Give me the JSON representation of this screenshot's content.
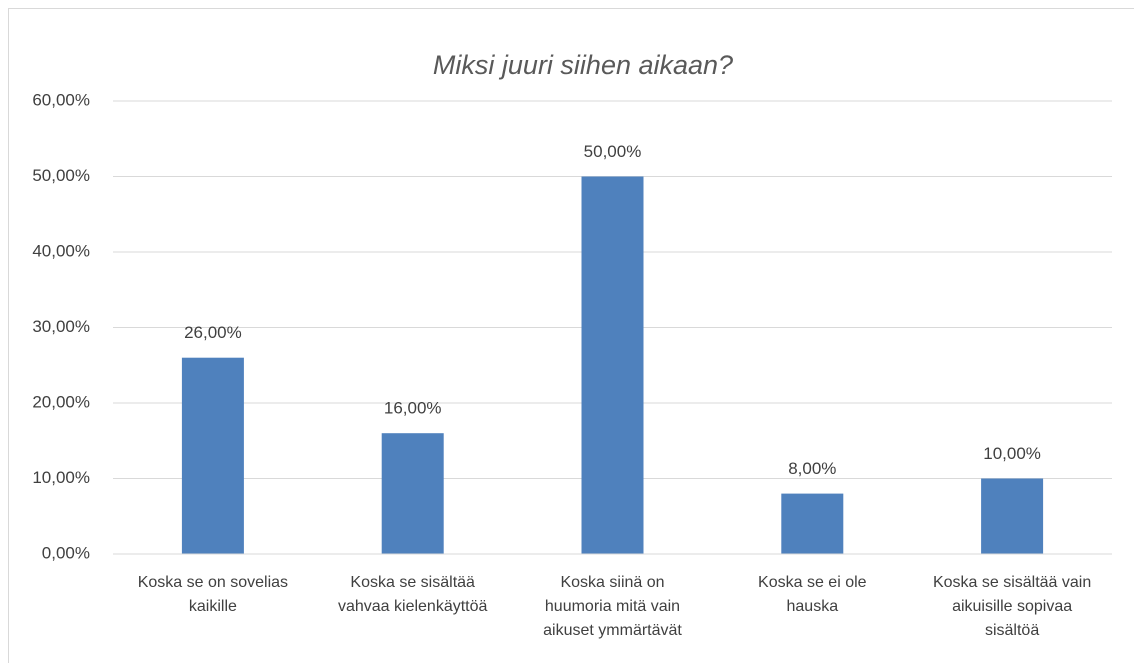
{
  "chart_data": {
    "type": "bar",
    "title": "Miksi juuri siihen aikaan?",
    "categories": [
      "Koska se on sovelias\nkaikille",
      "Koska se sisältää\nvahvaa kielenkäyttöä",
      "Koska siinä on\nhuumoria mitä vain\naikuset ymmärtävät",
      "Koska se ei ole\nhauska",
      "Koska se sisältää vain\naikuisille sopivaa\nsisältöä"
    ],
    "values": [
      26,
      16,
      50,
      8,
      10
    ],
    "value_labels": [
      "26,00%",
      "16,00%",
      "50,00%",
      "8,00%",
      "10,00%"
    ],
    "color": "#4f81bd",
    "ylim": [
      0,
      60
    ],
    "yticks": [
      {
        "value": 0,
        "label": "0,00%"
      },
      {
        "value": 10,
        "label": "10,00%"
      },
      {
        "value": 20,
        "label": "20,00%"
      },
      {
        "value": 30,
        "label": "30,00%"
      },
      {
        "value": 40,
        "label": "40,00%"
      },
      {
        "value": 50,
        "label": "50,00%"
      },
      {
        "value": 60,
        "label": "60,00%"
      }
    ],
    "grid": true
  }
}
